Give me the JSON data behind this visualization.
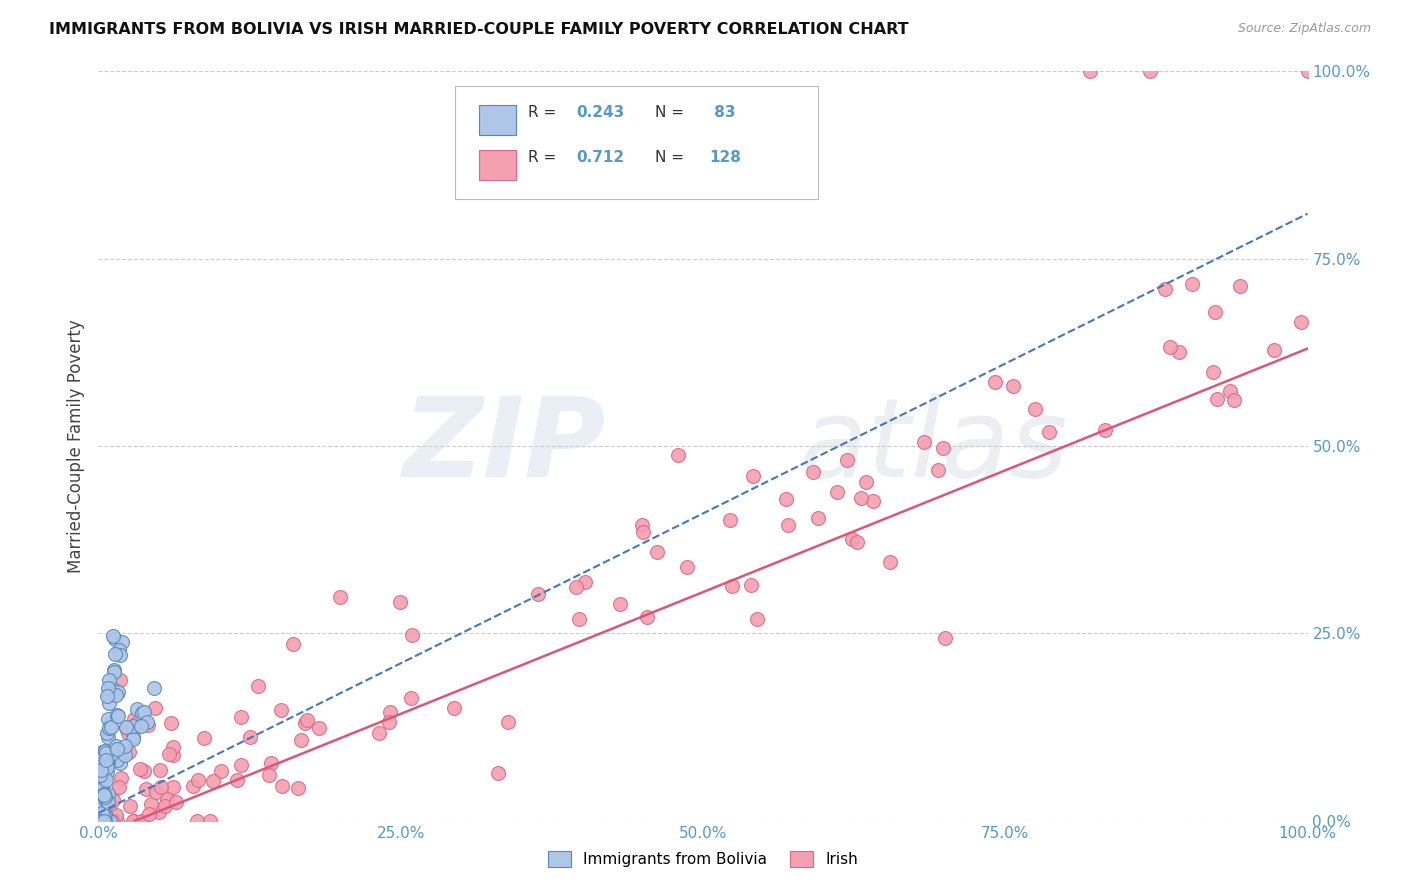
{
  "title": "IMMIGRANTS FROM BOLIVIA VS IRISH MARRIED-COUPLE FAMILY POVERTY CORRELATION CHART",
  "source": "Source: ZipAtlas.com",
  "ylabel": "Married-Couple Family Poverty",
  "xmin": 0.0,
  "xmax": 1.0,
  "ymin": 0.0,
  "ymax": 1.0,
  "bolivia_R": 0.243,
  "bolivia_N": 83,
  "irish_R": 0.712,
  "irish_N": 128,
  "bolivia_color": "#aec6e8",
  "bolivia_edge": "#5588bb",
  "irish_color": "#f4a0b0",
  "irish_edge": "#dd6688",
  "bolivia_trend_color": "#4477bb",
  "irish_trend_color": "#dd5577",
  "grid_color": "#cccccc",
  "background_color": "#ffffff",
  "tick_labels_x": [
    "0.0%",
    "25.0%",
    "50.0%",
    "75.0%",
    "100.0%"
  ],
  "tick_labels_y": [
    "0.0%",
    "25.0%",
    "50.0%",
    "75.0%",
    "100.0%"
  ],
  "tick_values": [
    0.0,
    0.25,
    0.5,
    0.75,
    1.0
  ],
  "axis_color": "#5599cc",
  "legend_label1": "R = 0.243   N =  83",
  "legend_label2": "R = 0.712   N = 128"
}
